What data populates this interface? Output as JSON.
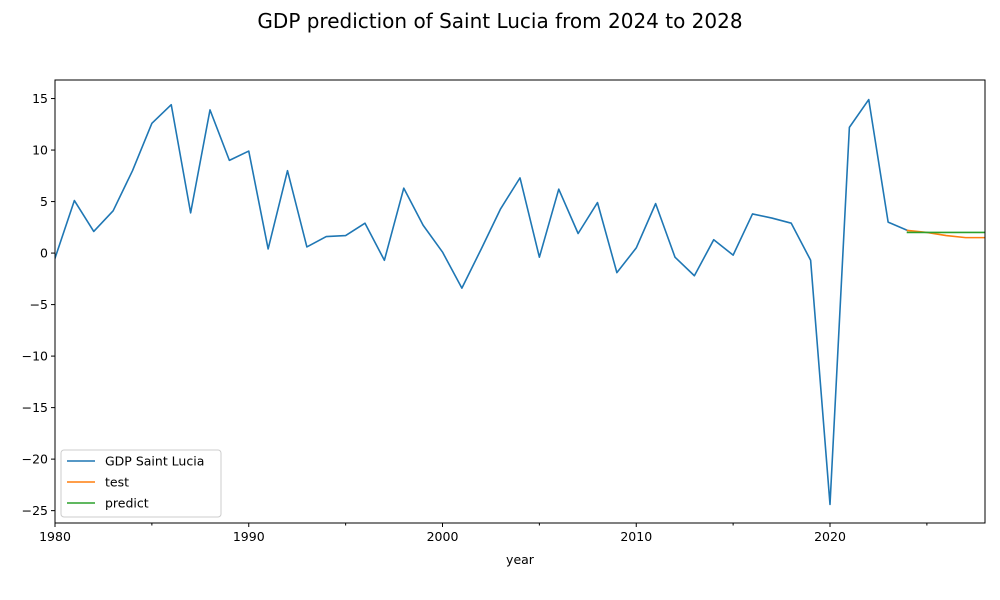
{
  "chart_data": {
    "type": "line",
    "title": "GDP prediction of Saint Lucia from 2024 to 2028",
    "xlabel": "year",
    "ylabel": "",
    "xlim": [
      1980,
      2028
    ],
    "ylim": [
      -26.2,
      16.8
    ],
    "x_ticks": [
      1980,
      1990,
      2000,
      2010,
      2020
    ],
    "x_minor_ticks": [
      1985,
      1995,
      2005,
      2015,
      2025
    ],
    "y_ticks": [
      -25,
      -20,
      -15,
      -10,
      -5,
      0,
      5,
      10,
      15
    ],
    "grid": false,
    "legend_position": "lower-left",
    "series": [
      {
        "name": "GDP Saint Lucia",
        "color": "#1f77b4",
        "x": [
          1980,
          1981,
          1982,
          1983,
          1984,
          1985,
          1986,
          1987,
          1988,
          1989,
          1990,
          1991,
          1992,
          1993,
          1994,
          1995,
          1996,
          1997,
          1998,
          1999,
          2000,
          2001,
          2002,
          2003,
          2004,
          2005,
          2006,
          2007,
          2008,
          2009,
          2010,
          2011,
          2012,
          2013,
          2014,
          2015,
          2016,
          2017,
          2018,
          2019,
          2020,
          2021,
          2022,
          2023,
          2024
        ],
        "values": [
          -0.5,
          5.1,
          2.1,
          4.1,
          8.0,
          12.6,
          14.4,
          3.9,
          13.9,
          9.0,
          9.9,
          0.4,
          8.0,
          0.6,
          1.6,
          1.7,
          2.9,
          -0.7,
          6.3,
          2.7,
          0.1,
          -3.4,
          0.4,
          4.3,
          7.3,
          -0.4,
          6.2,
          1.9,
          4.9,
          -1.9,
          0.5,
          4.8,
          -0.4,
          -2.2,
          1.3,
          -0.2,
          3.8,
          3.4,
          2.9,
          -0.7,
          -24.4,
          12.2,
          14.9,
          3.0,
          2.2
        ]
      },
      {
        "name": "test",
        "color": "#ff7f0e",
        "x": [
          2024,
          2025,
          2026,
          2027,
          2028
        ],
        "values": [
          2.2,
          2.0,
          1.7,
          1.5,
          1.5
        ]
      },
      {
        "name": "predict",
        "color": "#2ca02c",
        "x": [
          2024,
          2025,
          2026,
          2027,
          2028
        ],
        "values": [
          2.0,
          2.0,
          2.0,
          2.0,
          2.0
        ]
      }
    ]
  }
}
